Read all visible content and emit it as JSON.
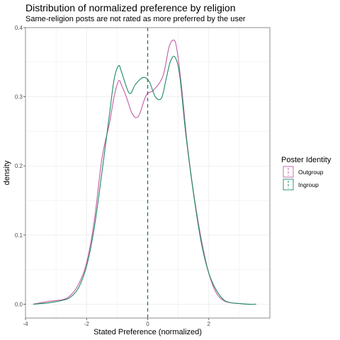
{
  "chart_data": {
    "type": "line",
    "title": "Distribution of normalized preference by religion",
    "subtitle": "Same-religion posts are not rated as more preferred by the user",
    "xlabel": "Stated Preference (normalized)",
    "ylabel": "density",
    "xlim": [
      -4,
      4
    ],
    "ylim": [
      -0.02,
      0.4
    ],
    "x_ticks": [
      -4,
      -2,
      0,
      2
    ],
    "y_ticks": [
      0.0,
      0.1,
      0.2,
      0.3,
      0.4
    ],
    "x_tick_labels": [
      "-4",
      "-2",
      "0",
      "2"
    ],
    "y_tick_labels": [
      "0.0",
      "0.1",
      "0.2",
      "0.3",
      "0.4"
    ],
    "grid": true,
    "vline": {
      "x": 0,
      "style": "dashed"
    },
    "legend": {
      "title": "Poster Identity",
      "position": "right"
    },
    "series": [
      {
        "name": "Outgroup",
        "color": "#c45ba5",
        "x": [
          -3.75,
          -3.25,
          -2.75,
          -2.5,
          -2.25,
          -2.0,
          -1.75,
          -1.5,
          -1.25,
          -1.1,
          -0.95,
          -0.85,
          -0.7,
          -0.5,
          -0.3,
          -0.05,
          0.2,
          0.5,
          0.7,
          0.85,
          0.95,
          1.1,
          1.3,
          1.5,
          1.75,
          2.0,
          2.25,
          2.5,
          2.75,
          3.0,
          3.25,
          3.55
        ],
        "values": [
          0.0,
          0.004,
          0.007,
          0.014,
          0.03,
          0.06,
          0.12,
          0.21,
          0.262,
          0.3,
          0.323,
          0.316,
          0.3,
          0.275,
          0.272,
          0.302,
          0.31,
          0.33,
          0.372,
          0.382,
          0.37,
          0.318,
          0.23,
          0.162,
          0.095,
          0.045,
          0.016,
          0.005,
          0.002,
          0.001,
          0.0,
          0.0
        ]
      },
      {
        "name": "Ingroup",
        "color": "#1d8b63",
        "x": [
          -3.75,
          -3.25,
          -2.75,
          -2.5,
          -2.25,
          -2.0,
          -1.75,
          -1.5,
          -1.25,
          -1.1,
          -0.95,
          -0.85,
          -0.6,
          -0.4,
          -0.15,
          0.05,
          0.25,
          0.45,
          0.6,
          0.75,
          0.9,
          1.05,
          1.25,
          1.5,
          1.75,
          2.0,
          2.25,
          2.5,
          2.75,
          3.0,
          3.25,
          3.55
        ],
        "values": [
          0.0,
          0.002,
          0.006,
          0.011,
          0.025,
          0.055,
          0.11,
          0.19,
          0.275,
          0.325,
          0.345,
          0.335,
          0.305,
          0.318,
          0.328,
          0.322,
          0.3,
          0.298,
          0.325,
          0.352,
          0.357,
          0.33,
          0.245,
          0.16,
          0.09,
          0.045,
          0.02,
          0.006,
          0.002,
          0.001,
          0.0,
          0.0
        ]
      }
    ]
  }
}
